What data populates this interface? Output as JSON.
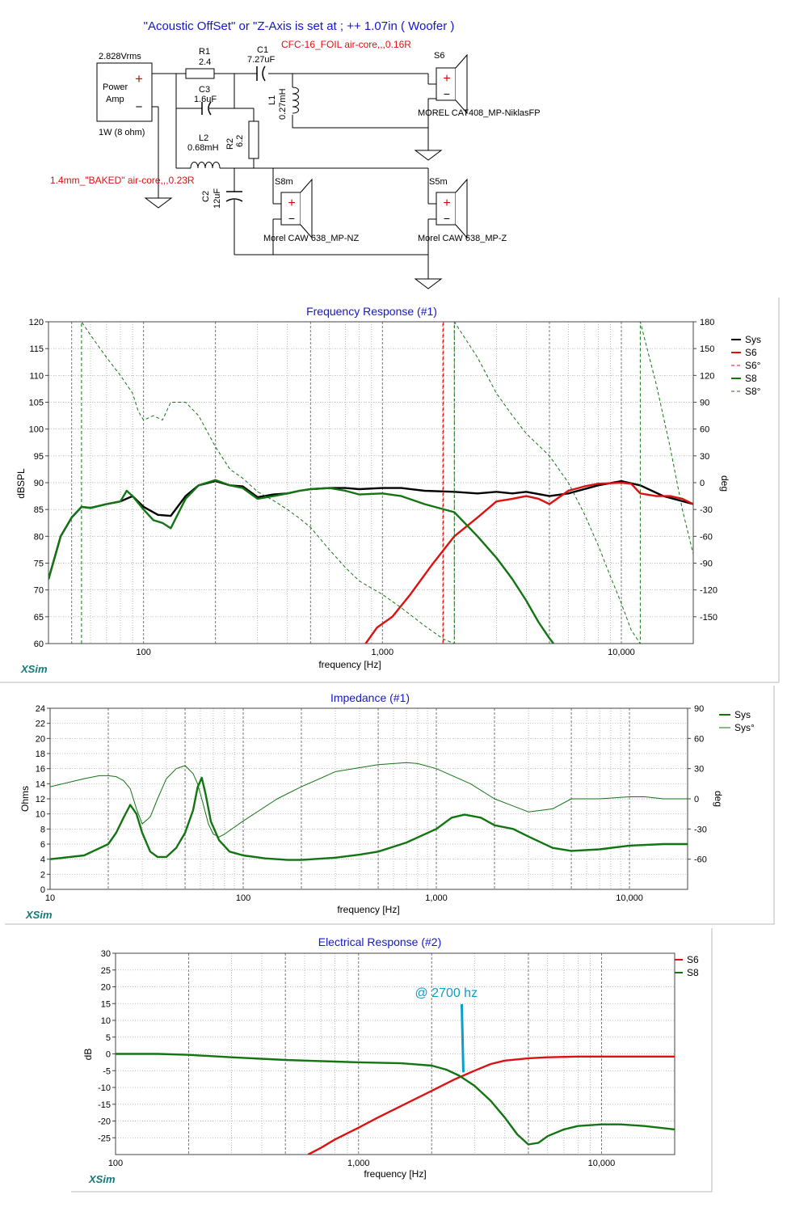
{
  "schematic": {
    "title": "\"Acoustic OffSet\" or \"Z-Axis is set at ; ++ 1.07in ( Woofer )",
    "source": {
      "voltage": "2.828Vrms",
      "label1": "Power",
      "label2": "Amp",
      "power": "1W (8 ohm)"
    },
    "components": [
      {
        "ref": "R1",
        "value": "2.4"
      },
      {
        "ref": "C1",
        "value": "7.27uF"
      },
      {
        "ref": "C3",
        "value": "1.6uF"
      },
      {
        "ref": "L1",
        "value": "0.27mH"
      },
      {
        "ref": "L2",
        "value": "0.68mH"
      },
      {
        "ref": "R2",
        "value": "6.2"
      },
      {
        "ref": "C2",
        "value": "12uF"
      }
    ],
    "notes": {
      "c1_note": "CFC-16_FOIL air-core,,,0.16R",
      "l2_note": "1.4mm_\"BAKED\" air-core,,,0.23R"
    },
    "drivers": [
      {
        "ref": "S6",
        "model": "MOREL  CAT408_MP-NiklasFP"
      },
      {
        "ref": "S8m",
        "model": "Morel CAW 638_MP-NZ"
      },
      {
        "ref": "S5m",
        "model": "Morel CAW 638_MP-Z"
      }
    ]
  },
  "chart_data": [
    {
      "type": "line",
      "title": "Frequency Response (#1)",
      "xlabel": "frequency [Hz]",
      "ylabel": "dBSPL",
      "y2label": "deg",
      "xscale": "log",
      "xlim": [
        40,
        20000
      ],
      "ylim": [
        60,
        120
      ],
      "y2lim": [
        -180,
        180
      ],
      "xticks": [
        100,
        1000,
        10000
      ],
      "xtick_labels": [
        "100",
        "1,000",
        "10,000"
      ],
      "yticks": [
        60,
        65,
        70,
        75,
        80,
        85,
        90,
        95,
        100,
        105,
        110,
        115,
        120
      ],
      "y2ticks": [
        -150,
        -120,
        -90,
        -60,
        -30,
        0,
        30,
        60,
        90,
        120,
        150,
        180
      ],
      "grid": true,
      "legend": "top-right",
      "watermark": "XSim",
      "series": [
        {
          "name": "Sys",
          "axis": "left",
          "color": "#000000",
          "dash": "solid",
          "width": 2.4,
          "x": [
            40,
            45,
            50,
            55,
            60,
            70,
            80,
            90,
            100,
            115,
            130,
            150,
            170,
            200,
            230,
            260,
            300,
            350,
            400,
            450,
            500,
            600,
            700,
            800,
            1000,
            1200,
            1500,
            2000,
            2500,
            3000,
            3500,
            4000,
            5000,
            6000,
            8000,
            10000,
            12000,
            15000,
            20000
          ],
          "y": [
            72,
            80,
            83.5,
            85.5,
            85.3,
            86,
            86.5,
            87.5,
            85.5,
            84,
            83.8,
            87.5,
            89.5,
            90.3,
            89.5,
            89.3,
            87.3,
            87.8,
            88,
            88.5,
            88.8,
            89,
            89,
            88.8,
            89,
            89,
            88.5,
            88.3,
            88,
            88.3,
            88,
            88.3,
            87.5,
            88,
            89.5,
            90.3,
            89.5,
            87.5,
            86
          ]
        },
        {
          "name": "S6",
          "axis": "left",
          "color": "#dd1111",
          "dash": "solid",
          "width": 2.4,
          "x": [
            850,
            950,
            1100,
            1300,
            1600,
            2000,
            2500,
            3000,
            3500,
            4000,
            4500,
            5000,
            6000,
            7000,
            8000,
            10000,
            11000,
            12000,
            14000,
            16000,
            18000,
            20000
          ],
          "y": [
            60,
            63,
            65,
            69,
            74.5,
            80,
            83.5,
            86.5,
            87,
            87.5,
            87,
            86,
            88.5,
            89.3,
            89.8,
            90,
            89.8,
            88,
            87.5,
            87.5,
            87,
            86
          ]
        },
        {
          "name": "S6°",
          "axis": "right",
          "color": "#dd1111",
          "dash": "4,3",
          "width": 1,
          "x": [
            1790,
            1790,
            1800,
            1800
          ],
          "y": [
            -180,
            180,
            180,
            -180
          ]
        },
        {
          "name": "S8",
          "axis": "left",
          "color": "#127512",
          "dash": "solid",
          "width": 2.4,
          "x": [
            40,
            45,
            50,
            55,
            60,
            70,
            80,
            85,
            90,
            100,
            110,
            120,
            130,
            150,
            170,
            200,
            230,
            260,
            300,
            350,
            400,
            450,
            500,
            600,
            700,
            800,
            1000,
            1200,
            1500,
            2000,
            2500,
            3000,
            3500,
            4000,
            4500,
            5000,
            5200
          ],
          "y": [
            72,
            80,
            83.5,
            85.5,
            85.3,
            86,
            86.5,
            88.5,
            87.5,
            85,
            83,
            82.5,
            81.5,
            87,
            89.5,
            90.5,
            89.5,
            89,
            87,
            87.5,
            88,
            88.5,
            88.8,
            89,
            88.5,
            87.8,
            88,
            87.5,
            86,
            84.5,
            80,
            76,
            72,
            68,
            64,
            61,
            60
          ]
        },
        {
          "name": "S8°",
          "axis": "right",
          "color": "#127512",
          "dash": "4,3",
          "width": 1,
          "x": [
            55,
            55,
            60,
            70,
            80,
            90,
            95,
            100,
            110,
            120,
            130,
            150,
            170,
            200,
            230,
            260,
            300,
            350,
            400,
            450,
            500,
            600,
            700,
            800,
            1000,
            1200,
            1500,
            1800,
            2000,
            2000,
            2500,
            3000,
            3500,
            4000,
            5000,
            6000,
            7000,
            8000,
            9000,
            10000,
            11000,
            12000,
            12000,
            14000,
            16000,
            18000,
            20000
          ],
          "y": [
            -180,
            180,
            165,
            140,
            120,
            100,
            80,
            70,
            75,
            70,
            90,
            90,
            75,
            40,
            15,
            5,
            -10,
            -20,
            -30,
            -40,
            -50,
            -75,
            -95,
            -110,
            -125,
            -140,
            -160,
            -175,
            -180,
            180,
            140,
            100,
            75,
            55,
            30,
            0,
            -35,
            -70,
            -105,
            -135,
            -165,
            -180,
            180,
            110,
            40,
            -30,
            -80
          ]
        }
      ]
    },
    {
      "type": "line",
      "title": "Impedance (#1)",
      "xlabel": "frequency [Hz]",
      "ylabel": "Ohms",
      "y2label": "deg",
      "xscale": "log",
      "xlim": [
        10,
        20000
      ],
      "ylim": [
        0,
        24
      ],
      "y2lim": [
        -90,
        90
      ],
      "xticks": [
        10,
        100,
        1000,
        10000
      ],
      "xtick_labels": [
        "10",
        "100",
        "1,000",
        "10,000"
      ],
      "yticks": [
        0,
        2,
        4,
        6,
        8,
        10,
        12,
        14,
        16,
        18,
        20,
        22,
        24
      ],
      "y2ticks": [
        -60,
        -30,
        0,
        30,
        60,
        90
      ],
      "grid": true,
      "legend": "top-right",
      "watermark": "XSim",
      "series": [
        {
          "name": "Sys",
          "axis": "left",
          "color": "#127512",
          "dash": "solid",
          "width": 2.4,
          "x": [
            10,
            15,
            20,
            22,
            24,
            26,
            28,
            30,
            33,
            36,
            40,
            45,
            50,
            55,
            58,
            61,
            64,
            68,
            75,
            85,
            100,
            130,
            170,
            200,
            300,
            400,
            500,
            700,
            1000,
            1200,
            1400,
            1700,
            2000,
            2500,
            3000,
            4000,
            5000,
            7000,
            10000,
            15000,
            20000
          ],
          "y": [
            4,
            4.5,
            6,
            7.5,
            9.5,
            11.2,
            10,
            7.5,
            5,
            4.3,
            4.3,
            5.5,
            7.5,
            10.5,
            13.5,
            14.8,
            12.5,
            9,
            6.5,
            5,
            4.5,
            4.1,
            3.9,
            3.9,
            4.2,
            4.6,
            5,
            6.2,
            8,
            9.5,
            9.9,
            9.5,
            8.5,
            8,
            7,
            5.5,
            5.1,
            5.3,
            5.8,
            6,
            6
          ]
        },
        {
          "name": "Sys°",
          "axis": "right",
          "color": "#127512",
          "dash": "solid",
          "width": 1,
          "x": [
            10,
            15,
            18,
            20,
            22,
            24,
            26,
            28,
            30,
            33,
            36,
            40,
            45,
            50,
            55,
            58,
            62,
            66,
            70,
            75,
            80,
            100,
            150,
            200,
            300,
            500,
            700,
            800,
            1000,
            1500,
            2000,
            3000,
            4000,
            5000,
            7000,
            10000,
            12000,
            15000,
            20000
          ],
          "y": [
            12,
            20,
            23,
            23,
            22,
            18,
            10,
            -10,
            -25,
            -18,
            0,
            20,
            30,
            33,
            25,
            15,
            -5,
            -25,
            -35,
            -38,
            -35,
            -22,
            0,
            12,
            27,
            34,
            36,
            35,
            30,
            15,
            0,
            -13,
            -10,
            0,
            0,
            2,
            2,
            0,
            0
          ]
        }
      ]
    },
    {
      "type": "line",
      "title": "Electrical Response (#2)",
      "xlabel": "frequency [Hz]",
      "ylabel": "dB",
      "xscale": "log",
      "xlim": [
        100,
        20000
      ],
      "ylim": [
        -30,
        30
      ],
      "xticks": [
        100,
        1000,
        10000
      ],
      "xtick_labels": [
        "100",
        "1,000",
        "10,000"
      ],
      "yticks": [
        -25,
        -20,
        -15,
        -10,
        -5,
        0,
        5,
        10,
        15,
        20,
        25,
        30
      ],
      "grid": true,
      "legend": "top-right",
      "watermark": "XSim",
      "annotation": {
        "text": "@ 2700 hz",
        "x": 2700,
        "y": -5.5,
        "color": "#0aa0c8"
      },
      "series": [
        {
          "name": "S6",
          "axis": "left",
          "color": "#dd1111",
          "dash": "solid",
          "width": 2.4,
          "x": [
            620,
            700,
            800,
            1000,
            1200,
            1500,
            2000,
            2500,
            3000,
            3500,
            4000,
            5000,
            6000,
            8000,
            10000,
            15000,
            20000
          ],
          "y": [
            -30,
            -28,
            -25.5,
            -22,
            -19,
            -15.5,
            -11,
            -7.5,
            -5,
            -3,
            -2,
            -1.3,
            -1,
            -0.8,
            -0.8,
            -0.8,
            -0.8
          ]
        },
        {
          "name": "S8",
          "axis": "left",
          "color": "#127512",
          "dash": "solid",
          "width": 2.4,
          "x": [
            100,
            150,
            200,
            300,
            500,
            800,
            1000,
            1500,
            2000,
            2300,
            2600,
            3000,
            3500,
            4000,
            4500,
            5000,
            5500,
            6000,
            7000,
            8000,
            10000,
            12000,
            15000,
            20000
          ],
          "y": [
            0,
            0,
            -0.3,
            -1,
            -1.8,
            -2.3,
            -2.5,
            -2.8,
            -3.5,
            -4.7,
            -6.5,
            -9.5,
            -14,
            -19,
            -24,
            -27,
            -26.5,
            -24.5,
            -22.5,
            -21.5,
            -21,
            -21,
            -21.5,
            -22.5
          ]
        }
      ]
    }
  ]
}
